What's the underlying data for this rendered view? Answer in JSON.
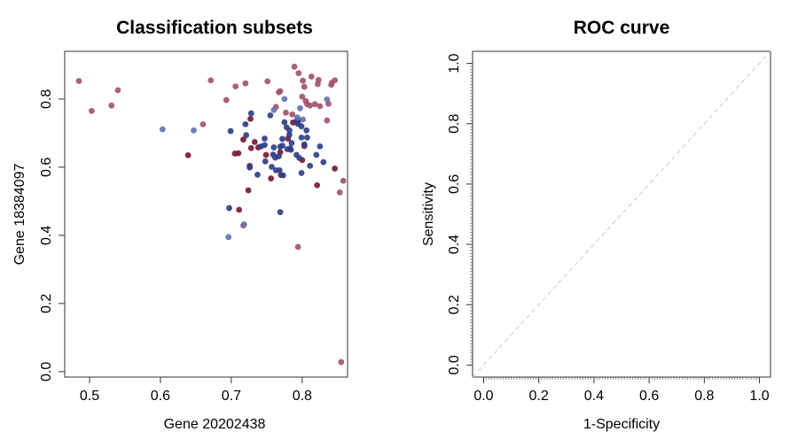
{
  "chart_data": [
    {
      "type": "scatter",
      "title": "Classification subsets",
      "xlabel": "Gene 20202438",
      "ylabel": "Gene 18384097",
      "xlim": [
        0.465,
        0.864
      ],
      "ylim": [
        -0.016,
        0.94
      ],
      "xticks": [
        "0.5",
        "0.6",
        "0.7",
        "0.8"
      ],
      "yticks": [
        "0.0",
        "0.2",
        "0.4",
        "0.6",
        "0.8"
      ],
      "grid": false,
      "colors": {
        "light_red": "#a35569",
        "dark_red": "#7a1a36",
        "dark_blue": "#2f3f86",
        "light_blue": "#6674ad"
      },
      "series": [
        {
          "color_key": "light_red",
          "points": [
            [
              0.485,
              0.853
            ],
            [
              0.503,
              0.765
            ],
            [
              0.531,
              0.781
            ],
            [
              0.54,
              0.826
            ],
            [
              0.66,
              0.726
            ],
            [
              0.671,
              0.855
            ],
            [
              0.693,
              0.797
            ],
            [
              0.706,
              0.837
            ],
            [
              0.72,
              0.846
            ],
            [
              0.751,
              0.852
            ],
            [
              0.763,
              0.777
            ],
            [
              0.767,
              0.82
            ],
            [
              0.769,
              0.823
            ],
            [
              0.777,
              0.76
            ],
            [
              0.786,
              0.755
            ],
            [
              0.789,
              0.895
            ],
            [
              0.795,
              0.876
            ],
            [
              0.8,
              0.807
            ],
            [
              0.801,
              0.854
            ],
            [
              0.803,
              0.836
            ],
            [
              0.805,
              0.794
            ],
            [
              0.807,
              0.785
            ],
            [
              0.811,
              0.781
            ],
            [
              0.813,
              0.866
            ],
            [
              0.818,
              0.785
            ],
            [
              0.822,
              0.844
            ],
            [
              0.823,
              0.856
            ],
            [
              0.825,
              0.779
            ],
            [
              0.835,
              0.737
            ],
            [
              0.837,
              0.786
            ],
            [
              0.841,
              0.842
            ],
            [
              0.842,
              0.848
            ],
            [
              0.846,
              0.855
            ],
            [
              0.853,
              0.526
            ],
            [
              0.858,
              0.56
            ],
            [
              0.855,
              0.028
            ],
            [
              0.794,
              0.366
            ],
            [
              0.717,
              0.429
            ]
          ]
        },
        {
          "color_key": "dark_red",
          "points": [
            [
              0.639,
              0.635
            ],
            [
              0.705,
              0.64
            ],
            [
              0.71,
              0.641
            ],
            [
              0.717,
              0.681
            ],
            [
              0.727,
              0.742
            ],
            [
              0.728,
              0.656
            ],
            [
              0.733,
              0.674
            ],
            [
              0.738,
              0.658
            ],
            [
              0.749,
              0.636
            ],
            [
              0.726,
              0.604
            ],
            [
              0.756,
              0.567
            ],
            [
              0.77,
              0.577
            ],
            [
              0.724,
              0.532
            ],
            [
              0.711,
              0.475
            ],
            [
              0.769,
              0.644
            ],
            [
              0.78,
              0.684
            ],
            [
              0.787,
              0.731
            ],
            [
              0.794,
              0.734
            ],
            [
              0.8,
              0.621
            ],
            [
              0.803,
              0.662
            ],
            [
              0.821,
              0.547
            ],
            [
              0.846,
              0.596
            ]
          ]
        },
        {
          "color_key": "dark_blue",
          "points": [
            [
              0.699,
              0.706
            ],
            [
              0.72,
              0.726
            ],
            [
              0.721,
              0.694
            ],
            [
              0.728,
              0.758
            ],
            [
              0.747,
              0.684
            ],
            [
              0.742,
              0.661
            ],
            [
              0.747,
              0.665
            ],
            [
              0.755,
              0.752
            ],
            [
              0.76,
              0.658
            ],
            [
              0.759,
              0.637
            ],
            [
              0.762,
              0.628
            ],
            [
              0.767,
              0.632
            ],
            [
              0.769,
              0.66
            ],
            [
              0.772,
              0.663
            ],
            [
              0.772,
              0.683
            ],
            [
              0.775,
              0.732
            ],
            [
              0.778,
              0.717
            ],
            [
              0.779,
              0.653
            ],
            [
              0.782,
              0.708
            ],
            [
              0.783,
              0.655
            ],
            [
              0.785,
              0.671
            ],
            [
              0.782,
              0.695
            ],
            [
              0.784,
              0.651
            ],
            [
              0.792,
              0.636
            ],
            [
              0.794,
              0.727
            ],
            [
              0.799,
              0.72
            ],
            [
              0.799,
              0.687
            ],
            [
              0.807,
              0.687
            ],
            [
              0.806,
              0.708
            ],
            [
              0.803,
              0.667
            ],
            [
              0.825,
              0.661
            ],
            [
              0.82,
              0.636
            ],
            [
              0.83,
              0.615
            ],
            [
              0.811,
              0.604
            ],
            [
              0.799,
              0.583
            ],
            [
              0.796,
              0.627
            ],
            [
              0.748,
              0.617
            ],
            [
              0.757,
              0.601
            ],
            [
              0.763,
              0.591
            ],
            [
              0.768,
              0.591
            ],
            [
              0.773,
              0.576
            ],
            [
              0.737,
              0.578
            ],
            [
              0.726,
              0.599
            ],
            [
              0.697,
              0.48
            ],
            [
              0.769,
              0.468
            ],
            [
              0.792,
              0.735
            ],
            [
              0.795,
              0.739
            ]
          ]
        },
        {
          "color_key": "light_blue",
          "points": [
            [
              0.603,
              0.711
            ],
            [
              0.647,
              0.708
            ],
            [
              0.775,
              0.8
            ],
            [
              0.76,
              0.768
            ],
            [
              0.797,
              0.773
            ],
            [
              0.793,
              0.746
            ],
            [
              0.801,
              0.74
            ],
            [
              0.835,
              0.799
            ],
            [
              0.696,
              0.395
            ],
            [
              0.718,
              0.432
            ]
          ]
        }
      ]
    },
    {
      "type": "line",
      "title": "ROC curve",
      "xlabel": "1-Specificity",
      "ylabel": "Sensitivity",
      "xlim": [
        -0.04,
        1.04
      ],
      "ylim": [
        -0.04,
        1.04
      ],
      "xticks": [
        "0.0",
        "0.2",
        "0.4",
        "0.6",
        "0.8",
        "1.0"
      ],
      "yticks": [
        "0.0",
        "0.2",
        "0.4",
        "0.6",
        "0.8",
        "1.0"
      ],
      "minor_tick_step": 0.01,
      "grid": false,
      "reference_line": {
        "x": [
          0,
          1
        ],
        "y": [
          0,
          1
        ],
        "style": "dashed",
        "color": "#c8c8c8"
      }
    }
  ]
}
